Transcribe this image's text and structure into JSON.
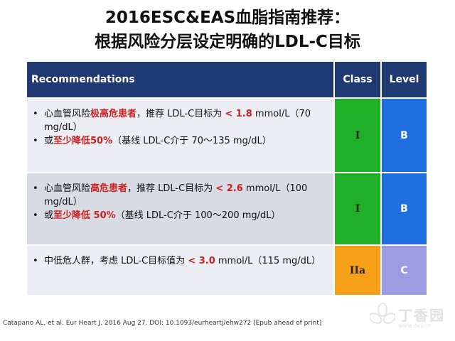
{
  "title": {
    "line1": "2016ESC&EAS血脂指南推荐：",
    "line2": "根据风险分层设定明确的LDL-C目标"
  },
  "table": {
    "headers": {
      "recommendations": "Recommendations",
      "class": "Class",
      "level": "Level"
    },
    "rows": [
      {
        "bullets": [
          [
            {
              "t": "心血管风险"
            },
            {
              "t": "极高危患者",
              "hl": true
            },
            {
              "t": "，推荐 LDL-C目标为 "
            },
            {
              "t": "< 1.8",
              "hl": true
            },
            {
              "t": " mmol/L（70 mg/dL）"
            }
          ],
          [
            {
              "t": "或"
            },
            {
              "t": "至少降低50%",
              "hl": true
            },
            {
              "t": "（基线 LDL-C介于 70～135 mg/dL）"
            }
          ]
        ],
        "class": "I",
        "level": "B",
        "class_color": "#1fb028",
        "level_color": "#1f6fe0"
      },
      {
        "bullets": [
          [
            {
              "t": "心血管风险"
            },
            {
              "t": "高危患者",
              "hl": true
            },
            {
              "t": "，推荐 LDL-C目标为 "
            },
            {
              "t": "< 2.6",
              "hl": true
            },
            {
              "t": " mmol/L（100 mg/dL）"
            }
          ],
          [
            {
              "t": "或"
            },
            {
              "t": "至少降低 50%",
              "hl": true
            },
            {
              "t": "（基线 LDL-C介于 100～200 mg/dL）"
            }
          ]
        ],
        "class": "I",
        "level": "B",
        "class_color": "#1fb028",
        "level_color": "#1f6fe0"
      },
      {
        "bullets": [
          [
            {
              "t": "中低危人群，考虑 LDL-C目标值为 "
            },
            {
              "t": "< 3.0",
              "hl": true
            },
            {
              "t": " mmol/L（115 mg/dL）"
            }
          ]
        ],
        "class": "IIa",
        "level": "C",
        "class_color": "#f5a017",
        "level_color": "#9d9be3"
      }
    ]
  },
  "bullet_glyph": "•",
  "citation": "Catapano AL, et al. Eur Heart J. 2016 Aug 27. DOI: 10.1093/eurheartj/ehw272 [Epub ahead of print]",
  "watermark": {
    "text": "丁香园",
    "sub": "www.dxy.cn"
  },
  "colors": {
    "header_bg": "#1f3a73",
    "highlight": "#cc1f1f",
    "row_bg": "#d9dbe4",
    "row_alt_bg": "#eceef4"
  }
}
